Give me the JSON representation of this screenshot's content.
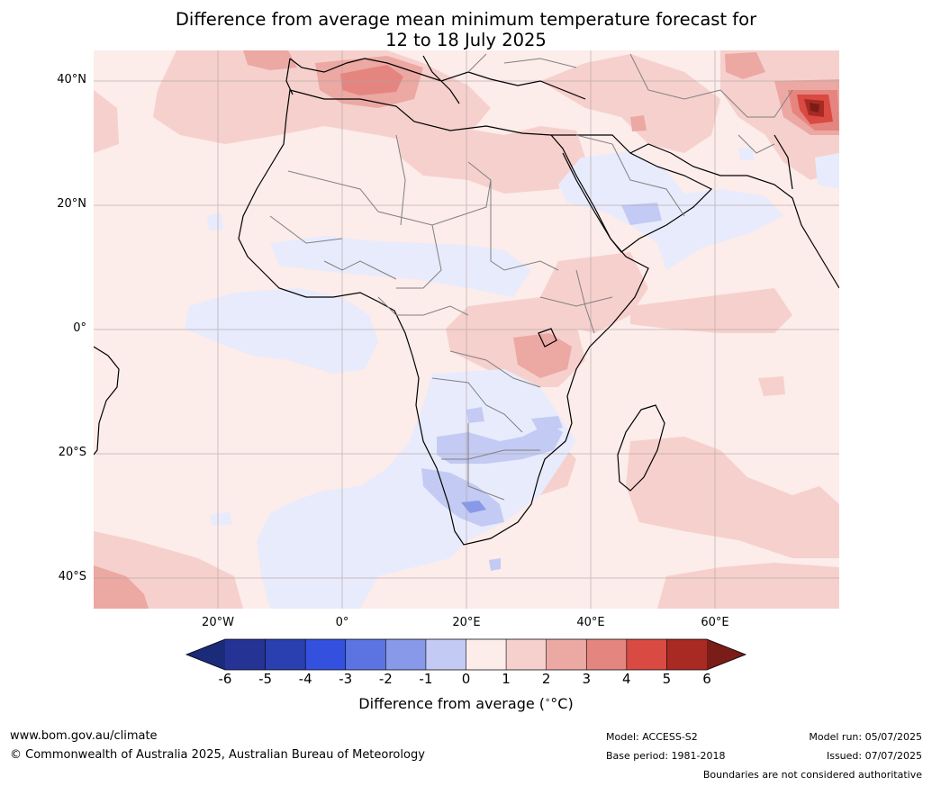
{
  "title": {
    "line1": "Difference from average mean minimum temperature forecast for",
    "line2": "12 to 18 July 2025"
  },
  "map": {
    "lat_labels": [
      "40°N",
      "20°N",
      "0°",
      "20°S",
      "40°S"
    ],
    "lon_labels": [
      "20°W",
      "0°",
      "20°E",
      "40°E",
      "60°E"
    ],
    "anomaly_regions": [
      {
        "region": "Western Mediterranean",
        "anomaly_range": "+3 to +4"
      },
      {
        "region": "Northern India / Himalaya",
        "anomaly_range": "+5 to +6"
      },
      {
        "region": "Lake Victoria area",
        "anomaly_range": "+2 to +3"
      },
      {
        "region": "Southern Africa interior",
        "anomaly_range": "-2 to -3"
      },
      {
        "region": "Arabian Peninsula",
        "anomaly_range": "-1 to -2"
      },
      {
        "region": "Southern Indian Ocean",
        "anomaly_range": "+1 to +2"
      },
      {
        "region": "South Atlantic",
        "anomaly_range": "0 to -1"
      }
    ]
  },
  "colorbar": {
    "ticks": [
      "-6",
      "-5",
      "-4",
      "-3",
      "-2",
      "-1",
      "0",
      "1",
      "2",
      "3",
      "4",
      "5",
      "6"
    ],
    "colors": [
      "#253494",
      "#2a3fb0",
      "#3350de",
      "#5b74e2",
      "#8799e8",
      "#c3cbf4",
      "#e8ebfc",
      "#fcecea",
      "#f6d0cd",
      "#eca8a3",
      "#e58580",
      "#d84a42",
      "#a82a22"
    ],
    "under_color": "#1c2a7a",
    "over_color": "#7a1c18",
    "label": "Difference from average (",
    "label_unit": "°C)"
  },
  "footer": {
    "website": "www.bom.gov.au/climate",
    "copyright": "© Commonwealth of Australia 2025, Australian Bureau of Meteorology",
    "model": "Model: ACCESS-S2",
    "base_period": "Base period: 1981-2018",
    "model_run": "Model run: 05/07/2025",
    "issued": "Issued: 07/07/2025",
    "disclaimer": "Boundaries are not considered authoritative"
  }
}
